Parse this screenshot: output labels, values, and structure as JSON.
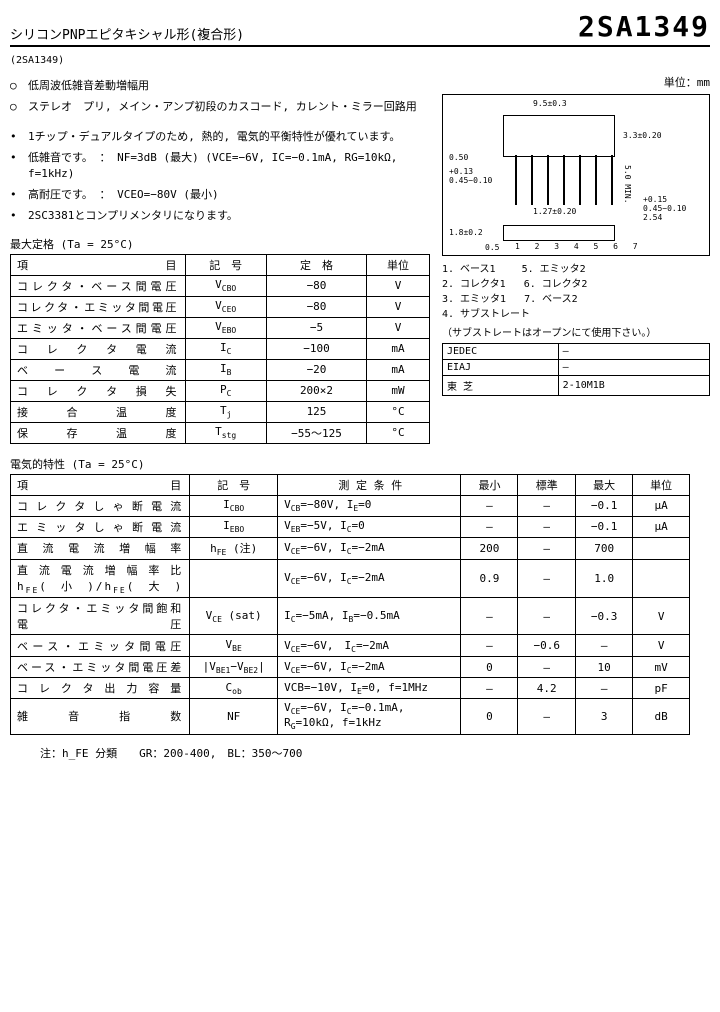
{
  "header": {
    "subtitle": "シリコンPNPエピタキシャル形(複合形)",
    "part_number": "2SA1349",
    "small_id": "(2SA1349)"
  },
  "apps": {
    "a1": "低周波低雑音差動増幅用",
    "a2": "ステレオ　プリ, メイン・アンプ初段のカスコード, カレント・ミラー回路用"
  },
  "features": {
    "f1": "1チップ・デュアルタイプのため, 熱的, 電気的平衡特性が優れています。",
    "f2": "低雑音です。 ： NF=3dB (最大) (VCE=−6V, IC=−0.1mA, RG=10kΩ, f=1kHz)",
    "f3": "高耐圧です。 ： VCEO=−80V (最小)",
    "f4": "2SC3381とコンプリメンタリになります。"
  },
  "package": {
    "unit_label": "単位：mm",
    "dim_w": "9.5±0.3",
    "dim_h": "5.0 MIN.",
    "dim_t": "3.3±0.20",
    "lead_pitch": "1.27±0.20",
    "lead_w": "0.50",
    "lead_t": "+0.13\n0.45−0.10",
    "pitch2": "2.54",
    "leadout": "+0.15\n0.45−0.10",
    "side_h": "1.8±0.2",
    "side_w": "0.5",
    "pin_numbers": "1 2 3 4 5 6 7",
    "pins": {
      "p1": "1. ベース1",
      "p2": "2. コレクタ1",
      "p3": "3. エミッタ1",
      "p4": "4. サブストレート",
      "p5": "5. エミッタ2",
      "p6": "6. コレクタ2",
      "p7": "7. ベース2"
    },
    "sub_note": "（サブストレートはオープンにて使用下さい。）",
    "refs": {
      "jedec_l": "JEDEC",
      "jedec_v": "―",
      "eiaj_l": "EIAJ",
      "eiaj_v": "―",
      "tosh_l": "東 芝",
      "tosh_v": "2-10M1B"
    }
  },
  "t1": {
    "title": "最大定格 (Ta = 25°C)",
    "h1": "項　　目",
    "h2": "記　号",
    "h3": "定　格",
    "h4": "単位",
    "rows": [
      {
        "n": "コレクタ・ベース間電圧",
        "s": "V_CBO",
        "v": "−80",
        "u": "V"
      },
      {
        "n": "コレクタ・エミッタ間電圧",
        "s": "V_CEO",
        "v": "−80",
        "u": "V"
      },
      {
        "n": "エミッタ・ベース間電圧",
        "s": "V_EBO",
        "v": "−5",
        "u": "V"
      },
      {
        "n": "コ レ ク タ 電 流",
        "s": "I_C",
        "v": "−100",
        "u": "mA"
      },
      {
        "n": "ベ ー ス 電 流",
        "s": "I_B",
        "v": "−20",
        "u": "mA"
      },
      {
        "n": "コ レ ク タ 損 失",
        "s": "P_C",
        "v": "200×2",
        "u": "mW"
      },
      {
        "n": "接 合 温 度",
        "s": "T_j",
        "v": "125",
        "u": "°C"
      },
      {
        "n": "保 存 温 度",
        "s": "T_stg",
        "v": "−55〜125",
        "u": "°C"
      }
    ]
  },
  "t2": {
    "title": "電気的特性 (Ta = 25°C)",
    "h1": "項　　目",
    "h2": "記　号",
    "h3": "測 定 条 件",
    "h4": "最小",
    "h5": "標準",
    "h6": "最大",
    "h7": "単位",
    "rows": [
      {
        "n": "コレクタしゃ断電流",
        "s": "I_CBO",
        "c": "V_CB=−80V, I_E=0",
        "min": "―",
        "typ": "―",
        "max": "−0.1",
        "u": "µA"
      },
      {
        "n": "エミッタしゃ断電流",
        "s": "I_EBO",
        "c": "V_EB=−5V, I_C=0",
        "min": "―",
        "typ": "―",
        "max": "−0.1",
        "u": "µA"
      },
      {
        "n": "直 流 電 流 増 幅 率",
        "s": "h_FE (注)",
        "c": "V_CE=−6V, I_C=−2mA",
        "min": "200",
        "typ": "―",
        "max": "700",
        "u": ""
      },
      {
        "n": "直流電流増幅率比 h_FE(小)/h_FE(大)",
        "s": "",
        "c": "V_CE=−6V, I_C=−2mA",
        "min": "0.9",
        "typ": "―",
        "max": "1.0",
        "u": ""
      },
      {
        "n": "コレクタ・エミッタ間飽和電圧",
        "s": "V_CE (sat)",
        "c": "I_C=−5mA, I_B=−0.5mA",
        "min": "―",
        "typ": "―",
        "max": "−0.3",
        "u": "V"
      },
      {
        "n": "ベース・エミッタ間電圧",
        "s": "V_BE",
        "c": "V_CE=−6V,　I_C=−2mA",
        "min": "―",
        "typ": "−0.6",
        "max": "―",
        "u": "V"
      },
      {
        "n": "ベース・エミッタ間電圧差",
        "s": "|V_BE1−V_BE2|",
        "c": "V_CE=−6V, I_C=−2mA",
        "min": "0",
        "typ": "―",
        "max": "10",
        "u": "mV"
      },
      {
        "n": "コレクタ出力容量",
        "s": "C_ob",
        "c": "VCB=−10V, I_E=0, f=1MHz",
        "min": "―",
        "typ": "4.2",
        "max": "―",
        "u": "pF"
      },
      {
        "n": "雑　音　指　数",
        "s": "NF",
        "c": "V_CE=−6V, I_C=−0.1mA, R_G=10kΩ, f=1kHz",
        "min": "0",
        "typ": "―",
        "max": "3",
        "u": "dB"
      }
    ]
  },
  "footnote": "注：h_FE 分類　　GR：200-400,　BL：350〜700"
}
